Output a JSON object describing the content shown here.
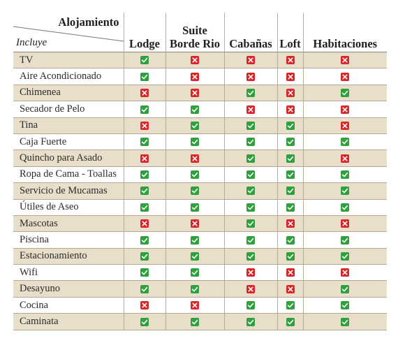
{
  "header": {
    "corner_top": "Alojamiento",
    "corner_bottom": "Incluye",
    "columns": [
      {
        "line1": "",
        "line2": "Lodge"
      },
      {
        "line1": "Suite",
        "line2": "Borde Rio"
      },
      {
        "line1": "",
        "line2": "Cabañas"
      },
      {
        "line1": "",
        "line2": "Loft"
      },
      {
        "line1": "",
        "line2": "Habitaciones"
      }
    ]
  },
  "colors": {
    "yes": "#2fa03d",
    "no": "#d8262a",
    "shade": "#e9dec9"
  },
  "icons": {
    "yes": "check-icon",
    "no": "cross-icon"
  },
  "rows": [
    {
      "label": "TV",
      "values": [
        true,
        false,
        false,
        false,
        false
      ]
    },
    {
      "label": "Aire Acondicionado",
      "values": [
        true,
        false,
        false,
        false,
        false
      ]
    },
    {
      "label": "Chimenea",
      "values": [
        false,
        false,
        true,
        false,
        true
      ]
    },
    {
      "label": "Secador de Pelo",
      "values": [
        true,
        true,
        false,
        false,
        false
      ]
    },
    {
      "label": "Tina",
      "values": [
        false,
        true,
        true,
        true,
        false
      ]
    },
    {
      "label": "Caja Fuerte",
      "values": [
        true,
        true,
        true,
        true,
        true
      ]
    },
    {
      "label": "Quincho para Asado",
      "values": [
        false,
        false,
        true,
        true,
        false
      ]
    },
    {
      "label": "Ropa de Cama - Toallas",
      "values": [
        true,
        true,
        true,
        true,
        true
      ]
    },
    {
      "label": "Servicio de Mucamas",
      "values": [
        true,
        true,
        true,
        true,
        true
      ]
    },
    {
      "label": "Útiles de Aseo",
      "values": [
        true,
        true,
        true,
        true,
        true
      ]
    },
    {
      "label": "Mascotas",
      "values": [
        false,
        false,
        true,
        false,
        false
      ]
    },
    {
      "label": "Piscina",
      "values": [
        true,
        true,
        true,
        true,
        true
      ]
    },
    {
      "label": "Estacionamiento",
      "values": [
        true,
        true,
        true,
        true,
        true
      ]
    },
    {
      "label": "Wifi",
      "values": [
        true,
        true,
        false,
        false,
        false
      ]
    },
    {
      "label": "Desayuno",
      "values": [
        true,
        true,
        false,
        false,
        true
      ]
    },
    {
      "label": "Cocina",
      "values": [
        false,
        false,
        true,
        true,
        true
      ]
    },
    {
      "label": "Caminata",
      "values": [
        true,
        true,
        true,
        true,
        true
      ]
    }
  ]
}
